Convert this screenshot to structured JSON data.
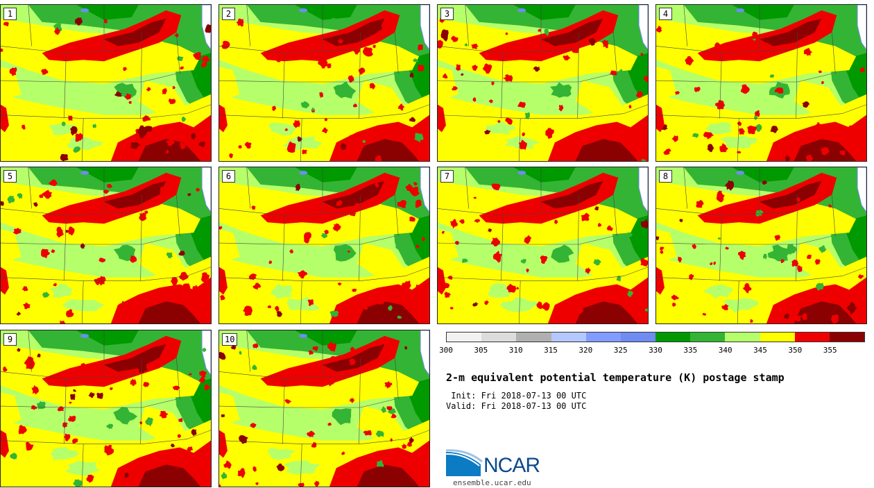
{
  "panels": [
    {
      "label": "1"
    },
    {
      "label": "2"
    },
    {
      "label": "3"
    },
    {
      "label": "4"
    },
    {
      "label": "5"
    },
    {
      "label": "6"
    },
    {
      "label": "7"
    },
    {
      "label": "8"
    },
    {
      "label": "9"
    },
    {
      "label": "10"
    }
  ],
  "colorbar": {
    "colors": [
      "#f2f2f2",
      "#dcdcdc",
      "#b0b0b0",
      "#b4c8ff",
      "#829cff",
      "#6e8cf2",
      "#009900",
      "#34b434",
      "#b5ff6a",
      "#ffff00",
      "#ee0000",
      "#8b0000"
    ],
    "ticks": [
      "300",
      "305",
      "310",
      "315",
      "320",
      "325",
      "330",
      "335",
      "340",
      "345",
      "350",
      "355"
    ]
  },
  "map_colors": {
    "green_light": "#b5ff6a",
    "green_mid": "#34b434",
    "green_dark": "#009900",
    "yellow": "#ffff00",
    "red": "#ee0000",
    "dark_red": "#8b0000",
    "lake_blue": "#6e8cf2"
  },
  "title": "2-m equivalent potential temperature (K) postage stamp",
  "init": " Init: Fri 2018-07-13 00 UTC",
  "valid": "Valid: Fri 2018-07-13 00 UTC",
  "logo": {
    "name": "NCAR",
    "url": "ensemble.ucar.edu"
  }
}
